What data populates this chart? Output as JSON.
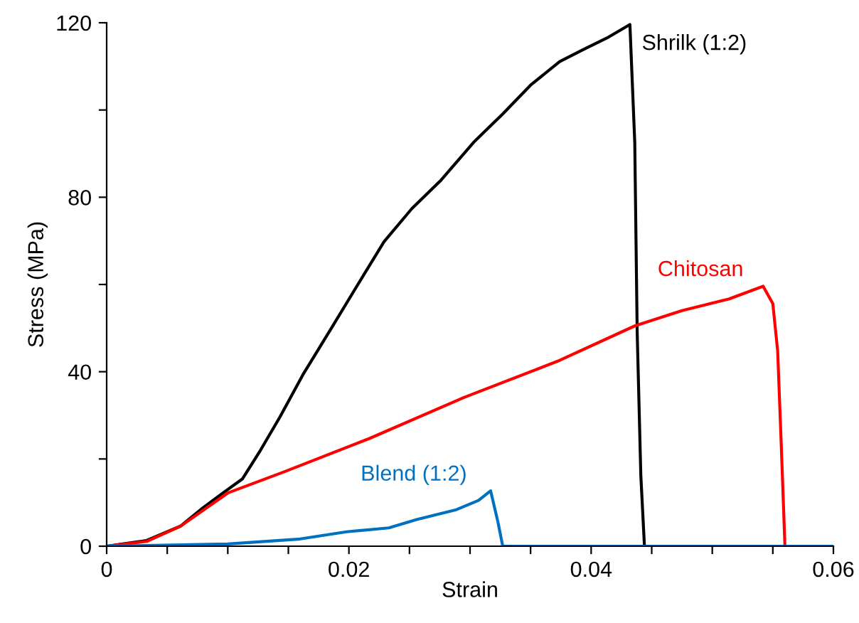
{
  "chart_data": {
    "type": "line",
    "xlabel": "Strain",
    "ylabel": "Stress (MPa)",
    "xlim": [
      0,
      0.06
    ],
    "ylim": [
      0,
      120
    ],
    "xticks": [
      0,
      {
        "value": 0.005,
        "label": null
      },
      {
        "value": 0.01,
        "label": null
      },
      {
        "value": 0.015,
        "label": null
      },
      0.02,
      {
        "value": 0.025,
        "label": null
      },
      {
        "value": 0.03,
        "label": null
      },
      {
        "value": 0.035,
        "label": null
      },
      0.04,
      {
        "value": 0.045,
        "label": null
      },
      {
        "value": 0.05,
        "label": null
      },
      {
        "value": 0.055,
        "label": null
      },
      0.06
    ],
    "yticks": [
      0,
      {
        "value": 20,
        "label": null
      },
      40,
      {
        "value": 60,
        "label": null
      },
      80,
      {
        "value": 100,
        "label": null
      },
      120
    ],
    "grid": false,
    "legend": false,
    "marker": "none",
    "line_style": "solid",
    "series": [
      {
        "name": "Shrilk (1:2)",
        "color": "#000000",
        "x": [
          0,
          0.0033,
          0.0061,
          0.008,
          0.0096,
          0.0112,
          0.0127,
          0.0143,
          0.0162,
          0.0186,
          0.0205,
          0.0229,
          0.0252,
          0.0276,
          0.0303,
          0.0327,
          0.035,
          0.0374,
          0.0393,
          0.0413,
          0.0432,
          0.0436,
          0.0438,
          0.0441,
          0.0444,
          0.06
        ],
        "values": [
          0,
          1.3,
          4.6,
          8.9,
          12.2,
          15.4,
          22,
          29.6,
          39.3,
          50.2,
          58.9,
          69.8,
          77.4,
          83.9,
          92.6,
          99.1,
          105.7,
          111.1,
          113.8,
          116.5,
          119.6,
          92.6,
          49.1,
          16.3,
          0,
          0
        ]
      },
      {
        "name": "Chitosan",
        "color": "#ff0000",
        "x": [
          0,
          0.0033,
          0.0061,
          0.01,
          0.0147,
          0.0217,
          0.0295,
          0.0374,
          0.0436,
          0.0475,
          0.0514,
          0.0542,
          0.055,
          0.0554,
          0.0557,
          0.056,
          0.06
        ],
        "values": [
          0,
          1.1,
          4.6,
          12.2,
          17.1,
          24.7,
          34.1,
          42.6,
          50.5,
          54,
          56.7,
          59.6,
          55.6,
          44.7,
          22.9,
          0,
          0
        ]
      },
      {
        "name": "Blend (1:2)",
        "color": "#0070c0",
        "x": [
          0,
          0.01,
          0.0158,
          0.0198,
          0.0233,
          0.0256,
          0.0288,
          0.0307,
          0.0317,
          0.0323,
          0.0327,
          0.06
        ],
        "values": [
          0,
          0.5,
          1.6,
          3.3,
          4.2,
          6.1,
          8.3,
          10.5,
          12.7,
          5.6,
          0,
          0
        ]
      }
    ]
  }
}
